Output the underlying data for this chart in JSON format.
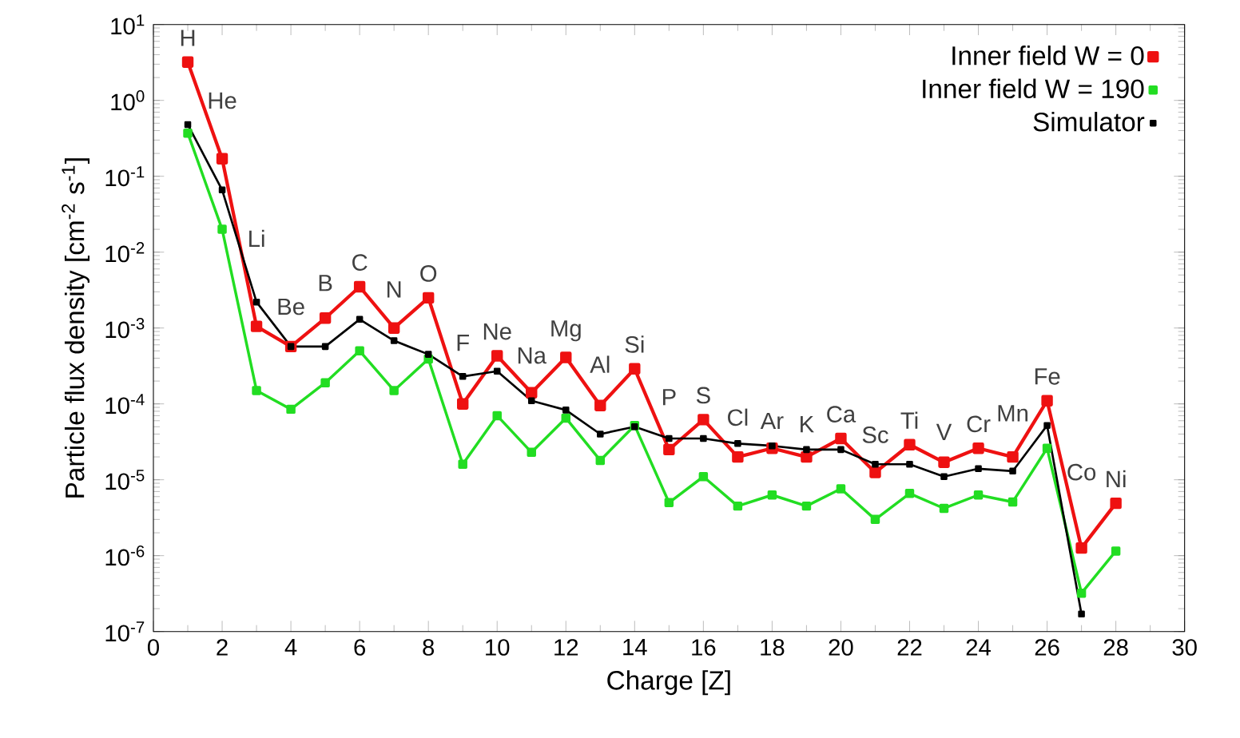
{
  "chart_data": {
    "type": "line",
    "xlabel": "Charge [Z]",
    "ylabel": "Particle flux density [cm$^{-2}$ s$^{-1}$]",
    "x": [
      1,
      2,
      3,
      4,
      5,
      6,
      7,
      8,
      9,
      10,
      11,
      12,
      13,
      14,
      15,
      16,
      17,
      18,
      19,
      20,
      21,
      22,
      23,
      24,
      25,
      26,
      27,
      28
    ],
    "series": [
      {
        "name": "Inner field W = 0",
        "color": "#ee1111",
        "values": [
          3.2,
          0.17,
          0.00105,
          0.00057,
          0.00135,
          0.0035,
          0.001,
          0.0025,
          0.0001,
          0.00043,
          0.00014,
          0.00041,
          9.5e-05,
          0.00029,
          2.5e-05,
          6.2e-05,
          2e-05,
          2.6e-05,
          2e-05,
          3.5e-05,
          1.25e-05,
          2.9e-05,
          1.7e-05,
          2.6e-05,
          2e-05,
          0.00011,
          1.26e-06,
          4.9e-06
        ]
      },
      {
        "name": "Inner field W = 190",
        "color": "#22dd22",
        "values": [
          0.37,
          0.02,
          0.00015,
          8.5e-05,
          0.00019,
          0.0005,
          0.00015,
          0.00039,
          1.6e-05,
          7e-05,
          2.3e-05,
          6.5e-05,
          1.8e-05,
          5.2e-05,
          5e-06,
          1.1e-05,
          4.5e-06,
          6.3e-06,
          4.5e-06,
          7.6e-06,
          3e-06,
          6.6e-06,
          4.2e-06,
          6.3e-06,
          5.1e-06,
          2.6e-05,
          3.2e-07,
          1.15e-06
        ]
      },
      {
        "name": "Simulator",
        "color": "#000000",
        "values": [
          0.48,
          0.066,
          0.0022,
          0.00057,
          0.00057,
          0.0013,
          0.00068,
          0.00045,
          0.00023,
          0.00027,
          0.00011,
          8.3e-05,
          4e-05,
          5e-05,
          3.5e-05,
          3.5e-05,
          3e-05,
          2.8e-05,
          2.5e-05,
          2.5e-05,
          1.6e-05,
          1.6e-05,
          1.1e-05,
          1.4e-05,
          1.3e-05,
          5.2e-05,
          1.7e-07,
          null
        ]
      }
    ],
    "xlim": [
      0,
      30
    ],
    "xticks": [
      0,
      2,
      4,
      6,
      8,
      10,
      12,
      14,
      16,
      18,
      20,
      22,
      24,
      26,
      28,
      30
    ],
    "log": "y",
    "ylim": [
      1e-07,
      10
    ],
    "yticks": [
      {
        "value": 1e-07,
        "label": "10$^{-7}$"
      },
      {
        "value": 1e-06,
        "label": "10$^{-6}$"
      },
      {
        "value": 1e-05,
        "label": "10$^{-5}$"
      },
      {
        "value": 0.0001,
        "label": "10$^{-4}$"
      },
      {
        "value": 0.001,
        "label": "10$^{-3}$"
      },
      {
        "value": 0.01,
        "label": "10$^{-2}$"
      },
      {
        "value": 0.1,
        "label": "10$^{-1}$"
      },
      {
        "value": 1,
        "label": "10$^{0}$"
      },
      {
        "value": 10,
        "label": "10$^{1}$"
      }
    ],
    "legend": "top right",
    "marker": "square",
    "line_style": "solid",
    "grid": false,
    "annotations": [
      {
        "text": "H",
        "x": 1,
        "y": 3.2
      },
      {
        "text": "He",
        "x": 2,
        "y": 0.17
      },
      {
        "text": "Li",
        "x": 3,
        "y": 0.0022
      },
      {
        "text": "Be",
        "x": 4,
        "y": 0.00057
      },
      {
        "text": "B",
        "x": 5,
        "y": 0.00135
      },
      {
        "text": "C",
        "x": 6,
        "y": 0.0035
      },
      {
        "text": "N",
        "x": 7,
        "y": 0.001
      },
      {
        "text": "O",
        "x": 8,
        "y": 0.0025
      },
      {
        "text": "F",
        "x": 9,
        "y": 0.00023
      },
      {
        "text": "Ne",
        "x": 10,
        "y": 0.00043
      },
      {
        "text": "Na",
        "x": 11,
        "y": 0.00014
      },
      {
        "text": "Mg",
        "x": 12,
        "y": 0.00041
      },
      {
        "text": "Al",
        "x": 13,
        "y": 9.5e-05
      },
      {
        "text": "Si",
        "x": 14,
        "y": 0.00029
      },
      {
        "text": "P",
        "x": 15,
        "y": 3.5e-05
      },
      {
        "text": "S",
        "x": 16,
        "y": 6.2e-05
      },
      {
        "text": "Cl",
        "x": 17,
        "y": 3e-05
      },
      {
        "text": "Ar",
        "x": 18,
        "y": 2.8e-05
      },
      {
        "text": "K",
        "x": 19,
        "y": 2.5e-05
      },
      {
        "text": "Ca",
        "x": 20,
        "y": 3.5e-05
      },
      {
        "text": "Sc",
        "x": 21,
        "y": 1.6e-05
      },
      {
        "text": "Ti",
        "x": 22,
        "y": 2.9e-05
      },
      {
        "text": "V",
        "x": 23,
        "y": 1.7e-05
      },
      {
        "text": "Cr",
        "x": 24,
        "y": 2.6e-05
      },
      {
        "text": "Mn",
        "x": 25,
        "y": 2e-05
      },
      {
        "text": "Fe",
        "x": 26,
        "y": 0.00011
      },
      {
        "text": "Co",
        "x": 27,
        "y": 1.26e-06
      },
      {
        "text": "Ni",
        "x": 28,
        "y": 4.9e-06
      }
    ]
  }
}
